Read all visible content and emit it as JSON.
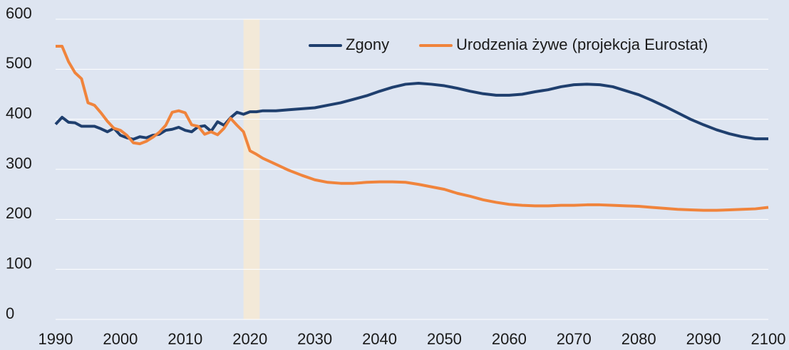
{
  "chart_data": {
    "type": "line",
    "x": [
      1990,
      1991,
      1992,
      1993,
      1994,
      1995,
      1996,
      1997,
      1998,
      1999,
      2000,
      2001,
      2002,
      2003,
      2004,
      2005,
      2006,
      2007,
      2008,
      2009,
      2010,
      2011,
      2012,
      2013,
      2014,
      2015,
      2016,
      2017,
      2018,
      2019,
      2020,
      2021,
      2022,
      2024,
      2026,
      2028,
      2030,
      2032,
      2034,
      2036,
      2038,
      2040,
      2042,
      2044,
      2046,
      2048,
      2050,
      2052,
      2054,
      2056,
      2058,
      2060,
      2062,
      2064,
      2066,
      2068,
      2070,
      2072,
      2074,
      2076,
      2078,
      2080,
      2082,
      2084,
      2086,
      2088,
      2090,
      2092,
      2094,
      2096,
      2098,
      2100
    ],
    "series": [
      {
        "name": "Zgony",
        "color": "#1f3f6e",
        "values": [
          390,
          404,
          394,
          393,
          386,
          386,
          386,
          381,
          375,
          382,
          368,
          363,
          360,
          365,
          363,
          368,
          370,
          378,
          380,
          384,
          378,
          375,
          385,
          387,
          376,
          395,
          388,
          403,
          414,
          410,
          415,
          415,
          417,
          417,
          419,
          421,
          423,
          428,
          433,
          440,
          447,
          456,
          464,
          470,
          472,
          470,
          467,
          462,
          456,
          451,
          448,
          448,
          450,
          455,
          459,
          465,
          469,
          470,
          469,
          465,
          457,
          449,
          438,
          426,
          413,
          400,
          389,
          379,
          371,
          365,
          361,
          361
        ]
      },
      {
        "name": "Urodzenia żywe (projekcja Eurostat)",
        "color": "#f0843c",
        "values": [
          546,
          546,
          515,
          493,
          481,
          433,
          428,
          413,
          396,
          382,
          378,
          368,
          353,
          351,
          356,
          364,
          374,
          388,
          414,
          417,
          413,
          389,
          386,
          370,
          375,
          369,
          382,
          402,
          388,
          375,
          337,
          330,
          322,
          310,
          298,
          288,
          279,
          274,
          272,
          272,
          274,
          275,
          275,
          274,
          270,
          265,
          260,
          252,
          246,
          239,
          234,
          230,
          228,
          227,
          227,
          228,
          228,
          229,
          229,
          228,
          227,
          226,
          224,
          222,
          220,
          219,
          218,
          218,
          219,
          220,
          221,
          224
        ]
      }
    ],
    "shade": [
      2019,
      2021.5
    ],
    "shade_color": "#f3e9d8",
    "xlim": [
      1990,
      2100
    ],
    "xticks": [
      1990,
      2000,
      2010,
      2020,
      2030,
      2040,
      2050,
      2060,
      2070,
      2080,
      2090,
      2100
    ],
    "ylim": [
      0,
      600
    ],
    "yticks": [
      0,
      100,
      200,
      300,
      400,
      500,
      600
    ],
    "grid": true,
    "legend": "top-right"
  }
}
